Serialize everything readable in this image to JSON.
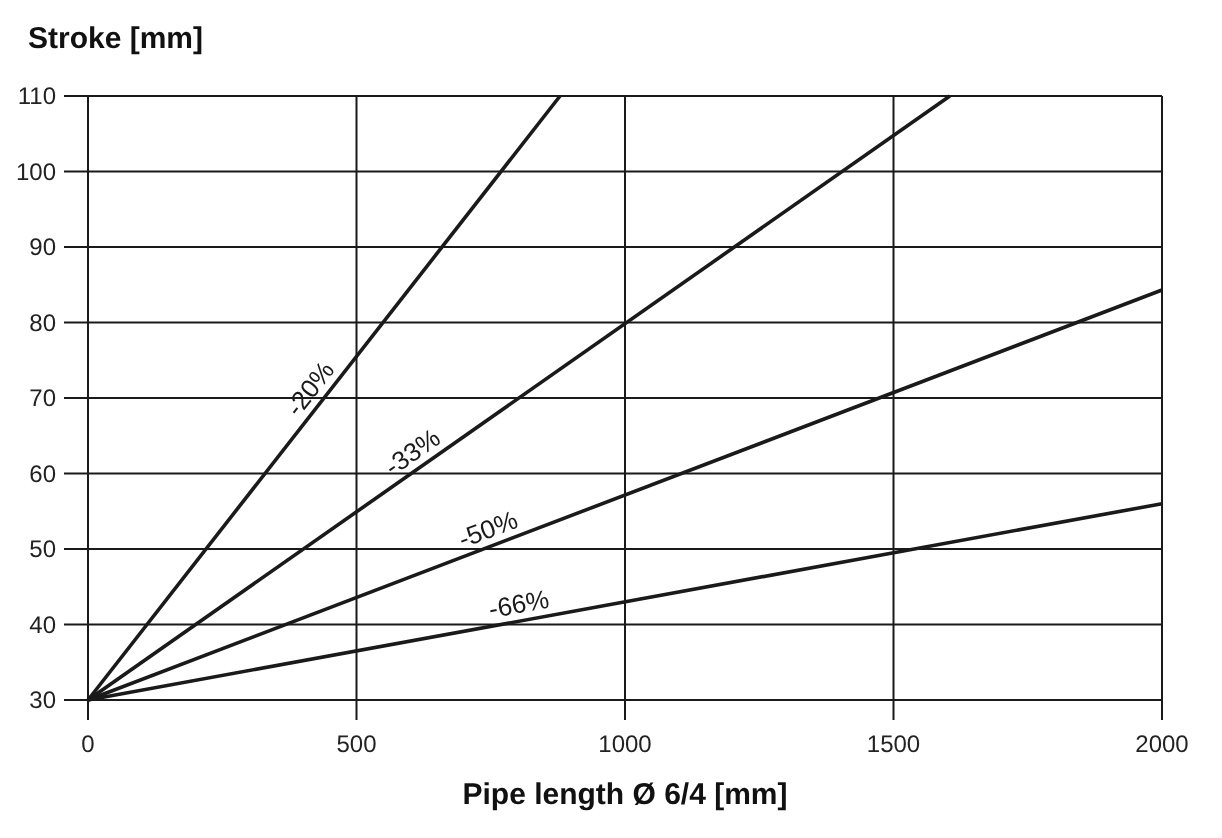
{
  "chart_data": {
    "type": "line",
    "xlabel": "Pipe length Ø 6/4 [mm]",
    "ylabel": "Stroke [mm]",
    "xlim": [
      0,
      2000
    ],
    "xticks": [
      0,
      500,
      1000,
      1500,
      2000
    ],
    "ylim": [
      30,
      110
    ],
    "yticks": [
      30,
      40,
      50,
      60,
      70,
      80,
      90,
      100,
      110
    ],
    "grid": true,
    "line_style": "solid",
    "marker": "none",
    "series": [
      {
        "name": "-20%",
        "color": "#1a1a1a",
        "x": [
          0,
          879
        ],
        "values": [
          30,
          110
        ]
      },
      {
        "name": "-33%",
        "color": "#1a1a1a",
        "x": [
          0,
          1605
        ],
        "values": [
          30,
          110
        ]
      },
      {
        "name": "-50%",
        "color": "#1a1a1a",
        "x": [
          0,
          2000
        ],
        "values": [
          30,
          84.3
        ]
      },
      {
        "name": "-66%",
        "color": "#1a1a1a",
        "x": [
          0,
          2000
        ],
        "values": [
          30,
          56
        ]
      }
    ]
  }
}
